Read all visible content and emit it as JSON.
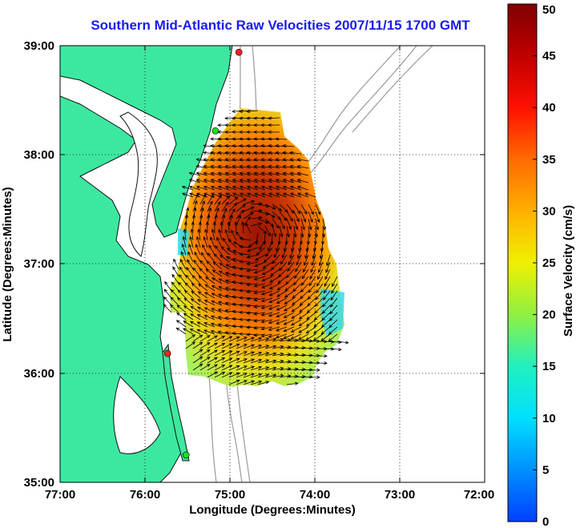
{
  "title": "Southern Mid-Atlantic Raw Velocities 2007/11/15 1700 GMT",
  "axes": {
    "xlabel": "Longitude (Degrees:Minutes)",
    "ylabel": "Latitude (Degrees:Minutes)",
    "x_ticks": [
      "77:00",
      "76:00",
      "75:00",
      "74:00",
      "73:00",
      "72:00"
    ],
    "y_ticks": [
      "39:00",
      "38:00",
      "37:00",
      "36:00",
      "35:00"
    ],
    "xlim": [
      -77,
      -72
    ],
    "ylim": [
      35,
      39
    ],
    "grid": true
  },
  "colorbar": {
    "label": "Surface Velocity (cm/s)",
    "ticks": [
      "0",
      "5",
      "10",
      "15",
      "20",
      "25",
      "30",
      "35",
      "40",
      "45",
      "50"
    ],
    "range": [
      0,
      50
    ]
  },
  "colors": {
    "land": "#3ce8a0",
    "coast": "#111111",
    "bathymetry": "#9a9a9a",
    "title": "#1a1aee",
    "station": "#ff2020",
    "station_alt": "#22dd22"
  },
  "stations": [
    {
      "lon": -74.87,
      "lat": 38.94,
      "color": "red"
    },
    {
      "lon": -75.15,
      "lat": 38.22,
      "color": "green"
    },
    {
      "lon": -75.72,
      "lat": 36.18,
      "color": "red"
    },
    {
      "lon": -75.5,
      "lat": 35.25,
      "color": "green"
    }
  ]
}
